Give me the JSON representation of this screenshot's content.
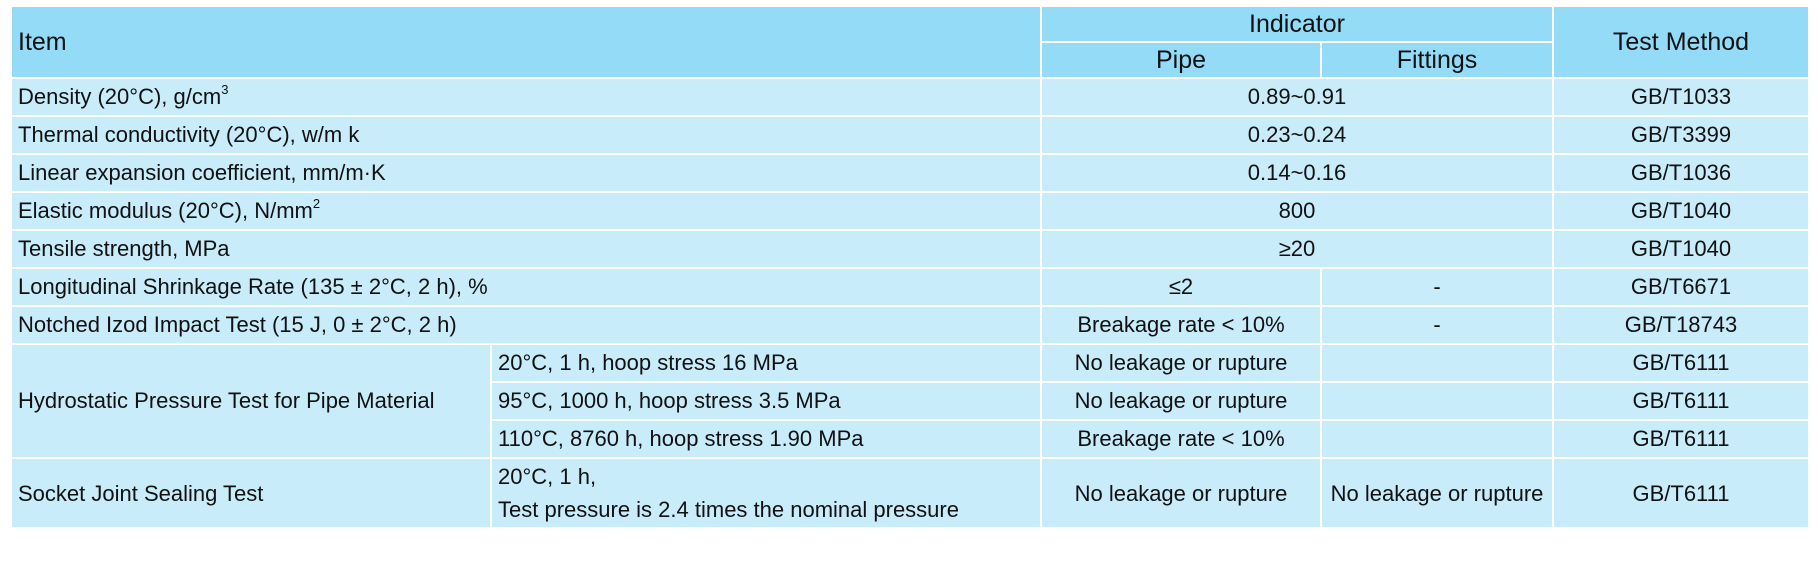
{
  "header": {
    "item": "Item",
    "indicator": "Indicator",
    "pipe": "Pipe",
    "fittings": "Fittings",
    "test_method": "Test Method"
  },
  "rows": [
    {
      "item": "Density (20°C), g/cm",
      "sup": "3",
      "value": "0.89~0.91",
      "method": "GB/T1033"
    },
    {
      "item": "Thermal conductivity (20°C), w/m k",
      "value": "0.23~0.24",
      "method": "GB/T3399"
    },
    {
      "item": "Linear expansion coefficient, mm/m·K",
      "value": "0.14~0.16",
      "method": "GB/T1036"
    },
    {
      "item": "Elastic modulus (20°C), N/mm",
      "sup": "2",
      "value": "800",
      "method": "GB/T1040"
    },
    {
      "item": "Tensile strength, MPa",
      "value": "≥20",
      "method": "GB/T1040"
    },
    {
      "item": "Longitudinal Shrinkage Rate (135 ± 2°C, 2 h), %",
      "pipe": "≤2",
      "fittings": "-",
      "method": "GB/T6671"
    },
    {
      "item": "Notched Izod Impact Test (15 J, 0 ± 2°C, 2 h)",
      "pipe": "Breakage rate < 10%",
      "fittings": "-",
      "method": "GB/T18743"
    }
  ],
  "hydro": {
    "label": "Hydrostatic Pressure Test for Pipe Material",
    "subrows": [
      {
        "condition": "20°C, 1 h, hoop stress 16 MPa",
        "pipe": "No leakage or rupture",
        "fittings": "",
        "method": "GB/T6111"
      },
      {
        "condition": "95°C, 1000 h, hoop stress 3.5 MPa",
        "pipe": "No leakage or rupture",
        "fittings": "",
        "method": "GB/T6111"
      },
      {
        "condition": "110°C, 8760 h, hoop stress 1.90 MPa",
        "pipe": "Breakage rate < 10%",
        "fittings": "",
        "method": "GB/T6111"
      }
    ]
  },
  "socket": {
    "label": "Socket Joint Sealing Test",
    "condition_line1": "20°C, 1 h,",
    "condition_line2": "Test pressure is 2.4 times the nominal pressure",
    "pipe": "No leakage or rupture",
    "fittings": "No leakage or rupture",
    "method": "GB/T6111"
  }
}
